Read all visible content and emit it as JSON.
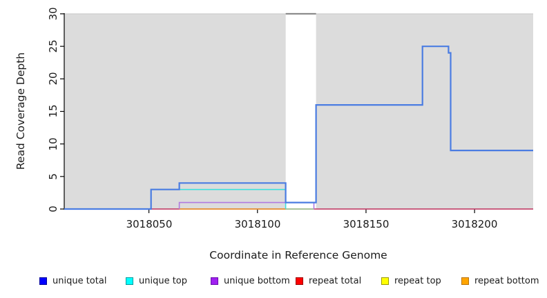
{
  "chart_data": {
    "type": "line",
    "subtype": "step",
    "title": "",
    "xlabel": "Coordinate in Reference Genome",
    "ylabel": "Read Coverage Depth",
    "xlim": [
      3018011,
      3018227
    ],
    "ylim": [
      0,
      30
    ],
    "grid": false,
    "xticks": {
      "values": [
        3018050,
        3018100,
        3018150,
        3018200
      ],
      "labels": [
        "3018050",
        "3018100",
        "3018150",
        "3018200"
      ]
    },
    "yticks": {
      "values": [
        0,
        5,
        10,
        15,
        20,
        25,
        30
      ],
      "labels": [
        "0",
        "5",
        "10",
        "15",
        "20",
        "25",
        "30"
      ]
    },
    "background_regions": [
      {
        "name": "shaded-region-left",
        "x1": 3018011,
        "x2": 3018113,
        "fill": "#dcdcdc",
        "edge": "#c8c8c8"
      },
      {
        "name": "shaded-region-right",
        "x1": 3018127,
        "x2": 3018227,
        "fill": "#dcdcdc",
        "edge": "#c8c8c8"
      }
    ],
    "clip_marker": {
      "x1": 3018113,
      "x2": 3018127,
      "y": 30,
      "color": "#8c8c8c"
    },
    "series": [
      {
        "name": "repeat total",
        "color_line": "#d2416e",
        "lw": 1.4,
        "points": [
          [
            3018011,
            0
          ],
          [
            3018227,
            0
          ]
        ]
      },
      {
        "name": "repeat top",
        "color_line": "#9cd89c",
        "lw": 1.6,
        "points": [
          [
            3018113,
            0
          ],
          [
            3018126,
            0
          ]
        ]
      },
      {
        "name": "repeat bottom",
        "color_line": "#f5a028",
        "lw": 1.6,
        "points": [
          [
            3018064,
            0
          ],
          [
            3018113,
            0
          ]
        ]
      },
      {
        "name": "unique bottom",
        "color_line": "#b07ae0",
        "lw": 1.6,
        "points": [
          [
            3018064,
            0
          ],
          [
            3018064,
            1
          ],
          [
            3018126,
            1
          ],
          [
            3018126,
            0
          ]
        ]
      },
      {
        "name": "unique top",
        "color_line": "#3fe0dc",
        "lw": 1.6,
        "points": [
          [
            3018051,
            0
          ],
          [
            3018051,
            3
          ],
          [
            3018113,
            3
          ],
          [
            3018113,
            0
          ]
        ]
      },
      {
        "name": "unique total",
        "color_line": "#4a7ce2",
        "lw": 2.2,
        "points": [
          [
            3018011,
            0
          ],
          [
            3018051,
            0
          ],
          [
            3018051,
            3
          ],
          [
            3018064,
            3
          ],
          [
            3018064,
            4
          ],
          [
            3018113,
            4
          ],
          [
            3018113,
            1
          ],
          [
            3018127,
            1
          ],
          [
            3018127,
            16
          ],
          [
            3018176,
            16
          ],
          [
            3018176,
            25
          ],
          [
            3018188,
            25
          ],
          [
            3018188,
            24
          ],
          [
            3018189,
            24
          ],
          [
            3018189,
            9
          ],
          [
            3018227,
            9
          ]
        ]
      }
    ],
    "legend": {
      "position": "bottom",
      "items": [
        {
          "label": "unique total",
          "fill": "#0000ff",
          "border": "#00009a"
        },
        {
          "label": "unique top",
          "fill": "#00ffff",
          "border": "#009a9a"
        },
        {
          "label": "unique bottom",
          "fill": "#a020f0",
          "border": "#6a0dad"
        },
        {
          "label": "repeat total",
          "fill": "#ff0000",
          "border": "#9a0000"
        },
        {
          "label": "repeat top",
          "fill": "#ffff00",
          "border": "#9a9a00"
        },
        {
          "label": "repeat bottom",
          "fill": "#ffa500",
          "border": "#b8720a"
        }
      ]
    }
  }
}
